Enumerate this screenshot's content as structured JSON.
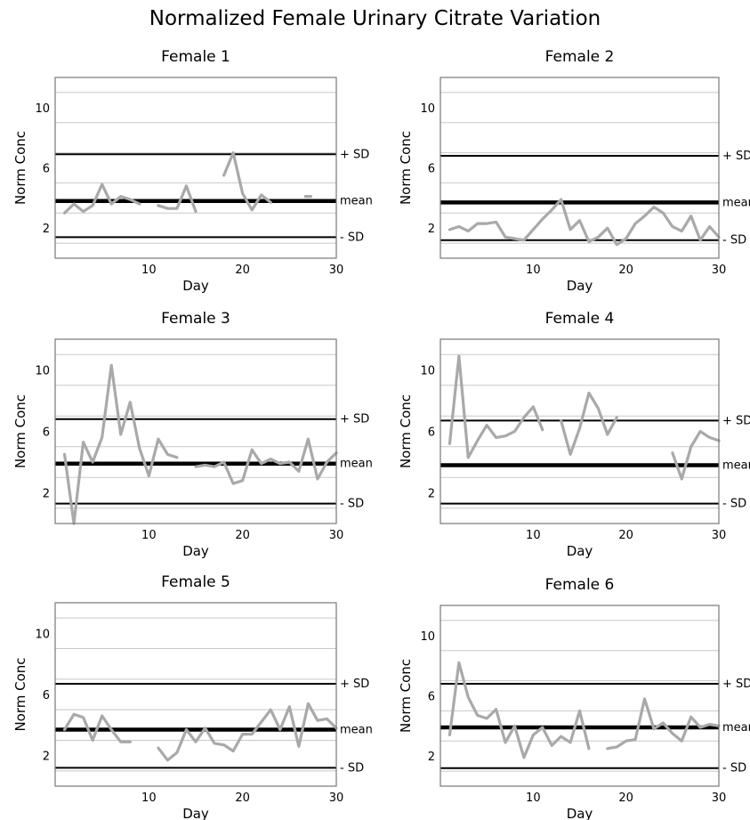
{
  "title": "Normalized Female Urinary Citrate Variation",
  "colors": {
    "series": "#a9a9a9",
    "reference": "#000000",
    "grid": "#c8c8c8"
  },
  "chart_data": [
    {
      "type": "line",
      "title": "Female 1",
      "xlabel": "Day",
      "ylabel": "Norm Conc",
      "xlim": [
        0,
        30
      ],
      "ylim": [
        0,
        12
      ],
      "xticks": [
        10,
        20,
        30
      ],
      "yticks": [
        2,
        6,
        10
      ],
      "reference_lines": [
        {
          "label": "+ SD",
          "value": 6.9
        },
        {
          "label": "mean",
          "value": 3.8
        },
        {
          "label": "- SD",
          "value": 1.4
        }
      ],
      "series": [
        {
          "x": [
            1,
            2,
            3,
            4,
            5,
            6,
            7,
            8,
            9,
            10,
            11,
            12,
            13,
            14,
            15,
            16,
            17,
            18,
            19,
            20,
            21,
            22,
            23,
            24,
            25,
            26,
            27
          ],
          "y": [
            3.0,
            3.6,
            3.1,
            3.5,
            4.9,
            3.6,
            4.1,
            3.9,
            3.6,
            null,
            3.5,
            3.3,
            3.3,
            4.8,
            3.1,
            null,
            null,
            5.5,
            7.0,
            4.3,
            3.2,
            4.2,
            3.7,
            null,
            null,
            null,
            4.1
          ]
        }
      ]
    },
    {
      "type": "line",
      "title": "Female 2",
      "xlabel": "Day",
      "ylabel": "Norm Conc",
      "xlim": [
        0,
        30
      ],
      "ylim": [
        0,
        12
      ],
      "xticks": [
        10,
        20,
        30
      ],
      "yticks": [
        2,
        6,
        10
      ],
      "reference_lines": [
        {
          "label": "+ SD",
          "value": 6.8
        },
        {
          "label": "mean",
          "value": 3.7
        },
        {
          "label": "- SD",
          "value": 1.2
        }
      ],
      "series": [
        {
          "x": [
            1,
            2,
            3,
            4,
            5,
            6,
            7,
            8,
            9,
            10,
            11,
            12,
            13,
            14,
            15,
            16,
            17,
            18,
            19,
            20,
            21,
            22,
            23,
            24,
            25,
            26,
            27,
            28,
            29,
            30
          ],
          "y": [
            1.9,
            2.1,
            1.8,
            2.3,
            2.3,
            2.4,
            1.4,
            1.3,
            1.2,
            1.9,
            2.6,
            3.2,
            3.9,
            1.9,
            2.5,
            1.1,
            1.4,
            2.0,
            0.9,
            1.3,
            2.3,
            2.8,
            3.4,
            3.0,
            2.1,
            1.8,
            2.8,
            1.2,
            2.1,
            1.4
          ]
        }
      ]
    },
    {
      "type": "line",
      "title": "Female 3",
      "xlabel": "Day",
      "ylabel": "Norm Conc",
      "xlim": [
        0,
        30
      ],
      "ylim": [
        0,
        12
      ],
      "xticks": [
        10,
        20,
        30
      ],
      "yticks": [
        2,
        6,
        10
      ],
      "reference_lines": [
        {
          "label": "+ SD",
          "value": 6.8
        },
        {
          "label": "mean",
          "value": 3.9
        },
        {
          "label": "- SD",
          "value": 1.3
        }
      ],
      "series": [
        {
          "x": [
            1,
            2,
            3,
            4,
            5,
            6,
            7,
            8,
            9,
            10,
            11,
            12,
            13,
            14,
            15,
            16,
            17,
            18,
            19,
            20,
            21,
            22,
            23,
            24,
            25,
            26,
            27,
            28,
            29,
            30
          ],
          "y": [
            4.5,
            0.0,
            5.3,
            4.0,
            5.6,
            10.3,
            5.8,
            7.9,
            4.9,
            3.1,
            5.5,
            4.5,
            4.3,
            null,
            3.7,
            3.8,
            3.7,
            4.0,
            2.6,
            2.8,
            4.8,
            3.9,
            4.2,
            3.9,
            4.0,
            3.4,
            5.5,
            2.9,
            4.0,
            4.6
          ]
        }
      ]
    },
    {
      "type": "line",
      "title": "Female 4",
      "xlabel": "Day",
      "ylabel": "Norm Conc",
      "xlim": [
        0,
        30
      ],
      "ylim": [
        0,
        12
      ],
      "xticks": [
        10,
        20,
        30
      ],
      "yticks": [
        2,
        6,
        10
      ],
      "reference_lines": [
        {
          "label": "+ SD",
          "value": 6.7
        },
        {
          "label": "mean",
          "value": 3.8
        },
        {
          "label": "- SD",
          "value": 1.3
        }
      ],
      "series": [
        {
          "x": [
            1,
            2,
            3,
            4,
            5,
            6,
            7,
            8,
            9,
            10,
            11,
            12,
            13,
            14,
            15,
            16,
            17,
            18,
            19,
            20,
            21,
            22,
            23,
            24,
            25,
            26,
            27,
            28,
            29,
            30
          ],
          "y": [
            5.2,
            10.9,
            4.3,
            5.4,
            6.4,
            5.6,
            5.7,
            6.0,
            6.9,
            7.6,
            6.1,
            null,
            6.7,
            4.5,
            6.2,
            8.5,
            7.5,
            5.8,
            6.9,
            null,
            null,
            null,
            null,
            null,
            4.6,
            2.9,
            5.0,
            6.0,
            5.6,
            5.4
          ]
        }
      ]
    },
    {
      "type": "line",
      "title": "Female 5",
      "xlabel": "Day",
      "ylabel": "Norm Conc",
      "xlim": [
        0,
        30
      ],
      "ylim": [
        0,
        12
      ],
      "xticks": [
        10,
        20,
        30
      ],
      "yticks": [
        2,
        6,
        10
      ],
      "reference_lines": [
        {
          "label": "+ SD",
          "value": 6.7
        },
        {
          "label": "mean",
          "value": 3.7
        },
        {
          "label": "- SD",
          "value": 1.2
        }
      ],
      "series": [
        {
          "x": [
            1,
            2,
            3,
            4,
            5,
            6,
            7,
            8,
            9,
            10,
            11,
            12,
            13,
            14,
            15,
            16,
            17,
            18,
            19,
            20,
            21,
            22,
            23,
            24,
            25,
            26,
            27,
            28,
            29,
            30
          ],
          "y": [
            3.7,
            4.7,
            4.5,
            3.0,
            4.6,
            3.7,
            2.9,
            2.9,
            null,
            null,
            2.5,
            1.7,
            2.2,
            3.7,
            2.9,
            3.8,
            2.8,
            2.7,
            2.3,
            3.4,
            3.4,
            4.2,
            5.0,
            3.7,
            5.2,
            2.6,
            5.4,
            4.3,
            4.4,
            3.8
          ]
        }
      ]
    },
    {
      "type": "line",
      "title": "Female 6",
      "xlabel": "Day",
      "ylabel": "Norm Conc",
      "xlim": [
        0,
        30
      ],
      "ylim": [
        0,
        12
      ],
      "xticks": [
        10,
        20,
        30
      ],
      "yticks": [
        2,
        6,
        10
      ],
      "reference_lines": [
        {
          "label": "+ SD",
          "value": 6.8
        },
        {
          "label": "mean",
          "value": 3.9
        },
        {
          "label": "- SD",
          "value": 1.2
        }
      ],
      "series": [
        {
          "x": [
            1,
            2,
            3,
            4,
            5,
            6,
            7,
            8,
            9,
            10,
            11,
            12,
            13,
            14,
            15,
            16,
            17,
            18,
            19,
            20,
            21,
            22,
            23,
            24,
            25,
            26,
            27,
            28,
            29,
            30
          ],
          "y": [
            3.4,
            8.2,
            5.9,
            4.7,
            4.5,
            5.1,
            2.9,
            4.0,
            1.9,
            3.4,
            3.9,
            2.7,
            3.3,
            2.9,
            5.0,
            2.5,
            null,
            2.5,
            2.6,
            3.0,
            3.1,
            5.8,
            3.8,
            4.2,
            3.5,
            3.0,
            4.6,
            3.9,
            4.1,
            4.0
          ]
        }
      ]
    }
  ]
}
